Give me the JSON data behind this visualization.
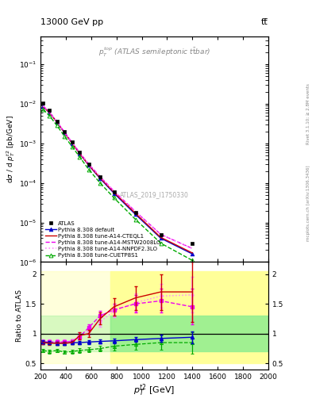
{
  "title_left": "13000 GeV pp",
  "title_right": "tt̅",
  "subtitle": "$p_T^{top}$ (ATLAS semileptonic t$\\bar{t}$bar)",
  "watermark": "ATLAS_2019_I1750330",
  "right_label": "mcplots.cern.ch [arXiv:1306.3436]",
  "rivet_label": "Rivet 3.1.10; ≥ 2.8M events",
  "xlabel": "$p_T^{t2}$ [GeV]",
  "ylabel_main": "d$\\sigma$ / d $p_T^{t2}$ [pb/GeV]",
  "ylabel_ratio": "Ratio to ATLAS",
  "atlas_x": [
    220,
    270,
    330,
    390,
    450,
    510,
    580,
    670,
    780,
    950,
    1150,
    1400
  ],
  "atlas_y": [
    0.0105,
    0.0068,
    0.0036,
    0.002,
    0.0011,
    0.0006,
    0.0003,
    0.00014,
    6e-05,
    1.8e-05,
    5e-06,
    3e-06
  ],
  "pythia_default_x": [
    220,
    270,
    330,
    390,
    450,
    510,
    580,
    670,
    780,
    950,
    1150,
    1400
  ],
  "pythia_default_y": [
    0.0085,
    0.006,
    0.0034,
    0.00185,
    0.001,
    0.00055,
    0.00028,
    0.00013,
    5.5e-05,
    1.6e-05,
    4e-06,
    1.6e-06
  ],
  "pythia_cteq_x": [
    220,
    270,
    330,
    390,
    450,
    510,
    580,
    670,
    780,
    950,
    1150,
    1400
  ],
  "pythia_cteq_y": [
    0.0085,
    0.006,
    0.0034,
    0.00185,
    0.001,
    0.00055,
    0.000285,
    0.000135,
    5.8e-05,
    1.7e-05,
    4.2e-06,
    1.7e-06
  ],
  "pythia_mstw_x": [
    220,
    270,
    330,
    390,
    450,
    510,
    580,
    670,
    780,
    950,
    1150,
    1400
  ],
  "pythia_mstw_y": [
    0.0088,
    0.0062,
    0.0035,
    0.0019,
    0.00105,
    0.00058,
    0.0003,
    0.000145,
    6.2e-05,
    1.9e-05,
    5e-06,
    2.2e-06
  ],
  "pythia_nnpdf_x": [
    220,
    270,
    330,
    390,
    450,
    510,
    580,
    670,
    780,
    950,
    1150,
    1400
  ],
  "pythia_nnpdf_y": [
    0.0088,
    0.0062,
    0.0035,
    0.0019,
    0.00105,
    0.00058,
    0.0003,
    0.000145,
    6.2e-05,
    1.9e-05,
    5e-06,
    2.2e-06
  ],
  "pythia_cuetp_x": [
    220,
    270,
    330,
    390,
    450,
    510,
    580,
    670,
    780,
    950,
    1150,
    1400
  ],
  "pythia_cuetp_y": [
    0.0072,
    0.005,
    0.0028,
    0.0015,
    0.00082,
    0.00045,
    0.00022,
    0.0001,
    4.2e-05,
    1.2e-05,
    3e-06,
    1.1e-06
  ],
  "ratio_default_x": [
    220,
    270,
    330,
    390,
    450,
    510,
    580,
    670,
    780,
    950,
    1150,
    1400
  ],
  "ratio_default_y": [
    0.86,
    0.85,
    0.84,
    0.84,
    0.85,
    0.85,
    0.86,
    0.87,
    0.88,
    0.9,
    0.92,
    0.94
  ],
  "ratio_default_err": [
    0.03,
    0.03,
    0.03,
    0.03,
    0.03,
    0.03,
    0.03,
    0.03,
    0.04,
    0.04,
    0.06,
    0.1
  ],
  "ratio_cteq_x": [
    220,
    270,
    330,
    390,
    450,
    510,
    580,
    670,
    780,
    950,
    1150,
    1400
  ],
  "ratio_cteq_y": [
    0.85,
    0.84,
    0.84,
    0.84,
    0.85,
    0.97,
    1.0,
    1.25,
    1.45,
    1.6,
    1.7,
    1.7
  ],
  "ratio_cteq_err": [
    0.03,
    0.03,
    0.03,
    0.03,
    0.03,
    0.06,
    0.06,
    0.1,
    0.15,
    0.2,
    0.3,
    0.5
  ],
  "ratio_mstw_x": [
    220,
    270,
    330,
    390,
    450,
    510,
    580,
    670,
    780,
    950,
    1150,
    1400
  ],
  "ratio_mstw_y": [
    0.86,
    0.86,
    0.86,
    0.86,
    0.87,
    0.95,
    1.1,
    1.3,
    1.4,
    1.5,
    1.55,
    1.45
  ],
  "ratio_mstw_err": [
    0.03,
    0.03,
    0.03,
    0.03,
    0.03,
    0.05,
    0.06,
    0.08,
    0.1,
    0.15,
    0.2,
    0.3
  ],
  "ratio_nnpdf_x": [
    220,
    270,
    330,
    390,
    450,
    510,
    580,
    670,
    780,
    950,
    1150,
    1400
  ],
  "ratio_nnpdf_y": [
    0.87,
    0.87,
    0.87,
    0.87,
    0.88,
    0.97,
    1.05,
    1.2,
    1.38,
    1.52,
    1.63,
    1.65
  ],
  "ratio_nnpdf_err": [
    0.03,
    0.03,
    0.03,
    0.03,
    0.03,
    0.05,
    0.06,
    0.08,
    0.1,
    0.15,
    0.2,
    0.3
  ],
  "ratio_cuetp_x": [
    220,
    270,
    330,
    390,
    450,
    510,
    580,
    670,
    780,
    950,
    1150,
    1400
  ],
  "ratio_cuetp_y": [
    0.72,
    0.7,
    0.72,
    0.69,
    0.7,
    0.72,
    0.73,
    0.75,
    0.79,
    0.82,
    0.85,
    0.85
  ],
  "ratio_cuetp_err": [
    0.03,
    0.03,
    0.03,
    0.03,
    0.03,
    0.04,
    0.04,
    0.05,
    0.07,
    0.09,
    0.12,
    0.18
  ],
  "band_yellow_xstart": 750,
  "band_yellow_ylo": 0.5,
  "band_yellow_yhi": 2.05,
  "band_green_xstart": 750,
  "band_green_ylo": 0.7,
  "band_green_yhi": 1.3,
  "color_atlas": "#000000",
  "color_default": "#0000cc",
  "color_cteq": "#cc0000",
  "color_mstw": "#ee00ee",
  "color_nnpdf": "#ff88ff",
  "color_cuetp": "#00aa00",
  "xlim": [
    200,
    2000
  ],
  "ylim_main": [
    1e-06,
    0.5
  ],
  "ylim_ratio": [
    0.4,
    2.2
  ],
  "ratio_yticks": [
    0.5,
    1.0,
    1.5,
    2.0
  ]
}
